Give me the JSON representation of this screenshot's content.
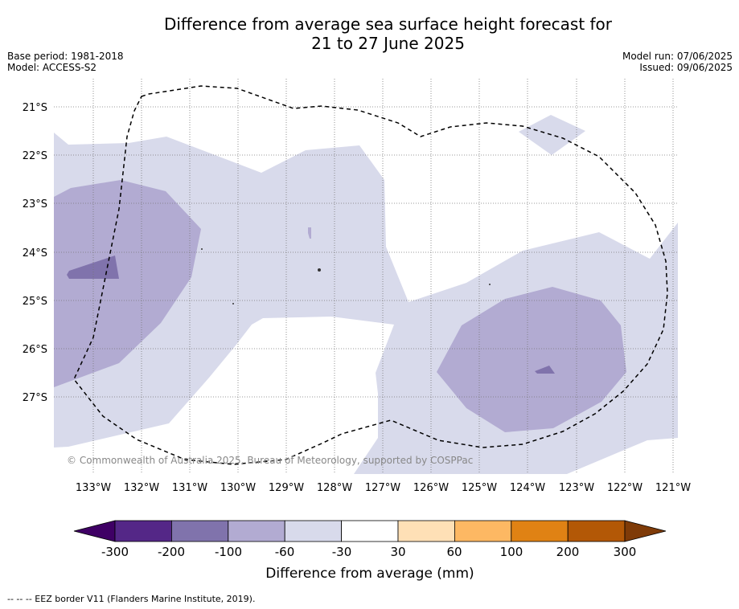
{
  "title_line1": "Difference from average sea surface height forecast for",
  "title_line2": "21 to 27 June 2025",
  "base_period": "Base period: 1981-2018",
  "model": "Model: ACCESS-S2",
  "model_run": "Model run: 07/06/2025",
  "issued": "Issued: 09/06/2025",
  "copyright": "© Commonwealth of Australia 2025, Bureau of Meteorology, supported by COSPPac",
  "lat_labels": [
    "21°S",
    "22°S",
    "23°S",
    "24°S",
    "25°S",
    "26°S",
    "27°S"
  ],
  "lon_labels": [
    "133°W",
    "132°W",
    "131°W",
    "130°W",
    "129°W",
    "128°W",
    "127°W",
    "126°W",
    "125°W",
    "124°W",
    "123°W",
    "122°W",
    "121°W"
  ],
  "colorbar": {
    "label": "Difference from average (mm)",
    "ticks": [
      "-300",
      "-200",
      "-100",
      "-60",
      "-30",
      "30",
      "60",
      "100",
      "200",
      "300"
    ],
    "colors": {
      "below_min": "#3f0065",
      "c1": "#542787",
      "c2": "#8073ac",
      "c3": "#b2abd2",
      "c4": "#d8daeb",
      "c5": "#ffffff",
      "c6": "#fee0b6",
      "c7": "#fdb863",
      "c8": "#e08214",
      "c9": "#b35806",
      "above_max": "#7f3b08"
    }
  },
  "legend_note": "--  --  -- EEZ border V11 (Flanders Marine Institute, 2019)."
}
